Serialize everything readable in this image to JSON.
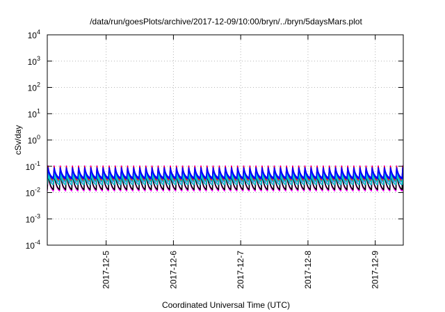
{
  "chart_data": {
    "type": "line",
    "title": "/data/run/goesPlots/archive/2017-12-09/10:00/bryn/../bryn/5daysMars.plot",
    "xlabel": "Coordinated Universal Time (UTC)",
    "ylabel": "cSv/day",
    "yscale": "log",
    "ylim": [
      0.0001,
      10000
    ],
    "y_ticks": [
      {
        "base": "10",
        "exp": "-4",
        "value": 0.0001
      },
      {
        "base": "10",
        "exp": "-3",
        "value": 0.001
      },
      {
        "base": "10",
        "exp": "-2",
        "value": 0.01
      },
      {
        "base": "10",
        "exp": "-1",
        "value": 0.1
      },
      {
        "base": "10",
        "exp": "0",
        "value": 1
      },
      {
        "base": "10",
        "exp": "1",
        "value": 10
      },
      {
        "base": "10",
        "exp": "2",
        "value": 100
      },
      {
        "base": "10",
        "exp": "3",
        "value": 1000
      },
      {
        "base": "10",
        "exp": "4",
        "value": 10000
      }
    ],
    "xlim": [
      "2017-12-04T03:00",
      "2017-12-09T10:00"
    ],
    "x_ticks": [
      "2017-12-5",
      "2017-12-6",
      "2017-12-7",
      "2017-12-8",
      "2017-12-9"
    ],
    "grid": true,
    "legend": "none",
    "periods_per_day": 11,
    "series": [
      {
        "color": "#ff00ff",
        "peak": 0.105,
        "trough": 0.019
      },
      {
        "color": "#ff00ff",
        "peak": 0.058,
        "trough": 0.0115
      },
      {
        "color": "#000000",
        "peak": 0.052,
        "trough": 0.013
      },
      {
        "color": "#ff0000",
        "peak": 0.098,
        "trough": 0.028
      },
      {
        "color": "#00c8c8",
        "peak": 0.066,
        "trough": 0.025
      },
      {
        "color": "#00c8c8",
        "peak": 0.05,
        "trough": 0.02
      },
      {
        "color": "#0000ff",
        "peak": 0.088,
        "trough": 0.037
      },
      {
        "color": "#0000ff",
        "peak": 0.078,
        "trough": 0.033
      }
    ]
  }
}
